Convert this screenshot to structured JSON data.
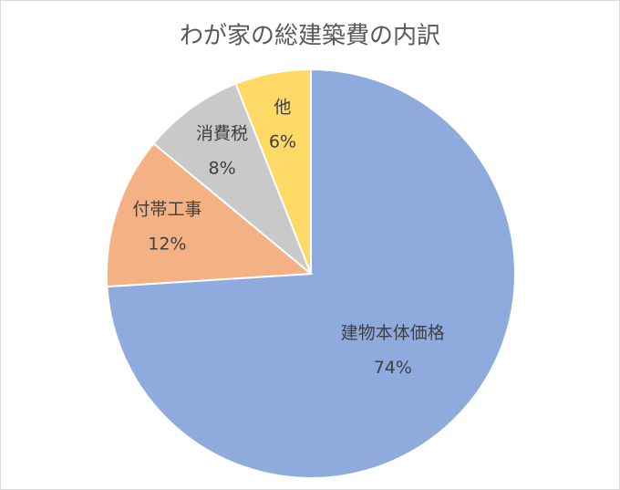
{
  "chart_data": {
    "type": "pie",
    "title": "わが家の総建築費の内訳",
    "categories": [
      "建物本体価格",
      "付帯工事",
      "消費税",
      "他"
    ],
    "values": [
      74,
      12,
      8,
      6
    ],
    "value_labels": [
      "74%",
      "12%",
      "8%",
      "6%"
    ],
    "colors": [
      "#8faadc",
      "#f4b183",
      "#c9c9c9",
      "#ffd966"
    ]
  }
}
